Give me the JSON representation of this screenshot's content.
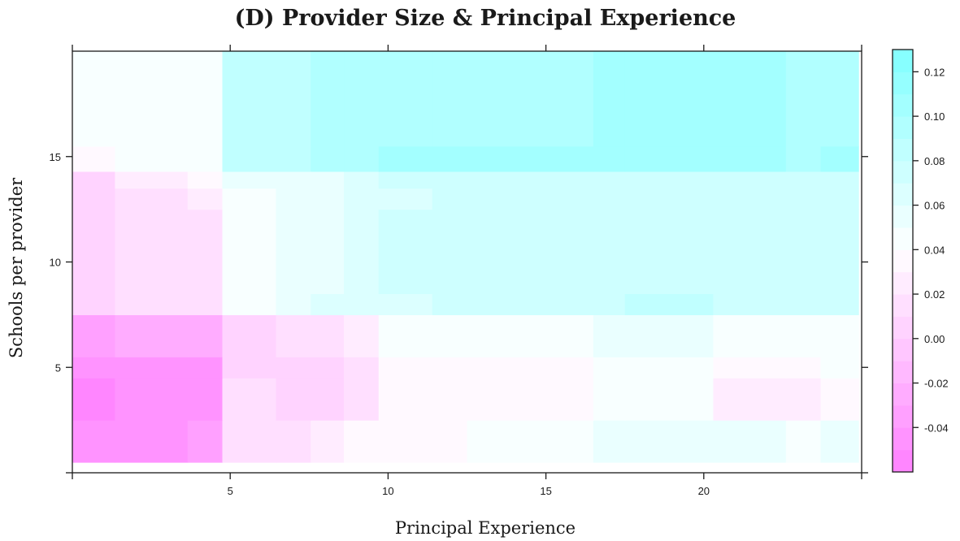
{
  "chart_data": {
    "type": "heatmap",
    "title": "(D) Provider Size & Principal Experience",
    "xlabel": "Principal Experience",
    "ylabel": "Schools per provider",
    "xlim": [
      0,
      25
    ],
    "ylim": [
      0,
      20
    ],
    "x_ticks": [
      {
        "value": 5,
        "label": "5"
      },
      {
        "value": 10,
        "label": "10"
      },
      {
        "value": 15,
        "label": "15"
      },
      {
        "value": 20,
        "label": "20"
      }
    ],
    "y_ticks": [
      {
        "value": 5,
        "label": "5"
      },
      {
        "value": 10,
        "label": "10"
      },
      {
        "value": 15,
        "label": "15"
      }
    ],
    "x_bins": [
      0,
      1.35,
      3.65,
      4.75,
      6.45,
      7.55,
      8.6,
      9.7,
      11.4,
      12.5,
      16.5,
      17.5,
      20.3,
      22.6,
      23.7,
      24.9
    ],
    "y_bins": [
      0.5,
      2.5,
      4.5,
      5.5,
      7.5,
      8.5,
      10.5,
      12.5,
      13.5,
      14.3,
      15.5,
      20
    ],
    "z_grid": [
      [
        -0.048,
        -0.04,
        -0.036,
        0.016,
        0.016,
        0.028,
        0.032,
        0.032,
        0.036,
        0.048,
        0.052,
        0.058,
        0.052,
        0.044,
        0.052
      ],
      [
        -0.052,
        -0.046,
        -0.044,
        0.012,
        0.004,
        0.008,
        0.016,
        0.032,
        0.032,
        0.034,
        0.044,
        0.044,
        0.028,
        0.028,
        0.032
      ],
      [
        -0.044,
        -0.042,
        -0.042,
        0.008,
        0.004,
        0.008,
        0.016,
        0.032,
        0.032,
        0.032,
        0.044,
        0.044,
        0.034,
        0.034,
        0.04
      ],
      [
        -0.036,
        -0.03,
        -0.03,
        0.006,
        0.012,
        0.012,
        0.026,
        0.046,
        0.046,
        0.046,
        0.056,
        0.056,
        0.046,
        0.046,
        0.046
      ],
      [
        0.008,
        0.016,
        0.016,
        0.042,
        0.058,
        0.06,
        0.062,
        0.062,
        0.072,
        0.072,
        0.074,
        0.082,
        0.07,
        0.072,
        0.072
      ],
      [
        0.008,
        0.016,
        0.016,
        0.042,
        0.05,
        0.058,
        0.062,
        0.07,
        0.07,
        0.074,
        0.078,
        0.078,
        0.074,
        0.072,
        0.072
      ],
      [
        0.008,
        0.016,
        0.016,
        0.042,
        0.05,
        0.058,
        0.062,
        0.074,
        0.074,
        0.074,
        0.074,
        0.074,
        0.074,
        0.074,
        0.074
      ],
      [
        0.008,
        0.016,
        0.022,
        0.044,
        0.05,
        0.058,
        0.062,
        0.066,
        0.072,
        0.072,
        0.078,
        0.078,
        0.072,
        0.072,
        0.072
      ],
      [
        0.008,
        0.022,
        0.03,
        0.054,
        0.054,
        0.056,
        0.066,
        0.072,
        0.072,
        0.072,
        0.078,
        0.078,
        0.072,
        0.072,
        0.072
      ],
      [
        0.03,
        0.048,
        0.048,
        0.08,
        0.08,
        0.09,
        0.096,
        0.1,
        0.1,
        0.1,
        0.11,
        0.11,
        0.104,
        0.094,
        0.106
      ],
      [
        0.04,
        0.048,
        0.048,
        0.08,
        0.08,
        0.09,
        0.09,
        0.098,
        0.098,
        0.098,
        0.11,
        0.106,
        0.106,
        0.094,
        0.094
      ]
    ],
    "colorbar": {
      "min": -0.06,
      "max": 0.13,
      "low_color": "#ff80ff",
      "mid_color": "#ffffff",
      "high_color": "#80ffff",
      "mid_value": 0.04,
      "levels": 19,
      "ticks": [
        {
          "value": 0.12,
          "label": "0.12"
        },
        {
          "value": 0.1,
          "label": "0.10"
        },
        {
          "value": 0.08,
          "label": "0.08"
        },
        {
          "value": 0.06,
          "label": "0.06"
        },
        {
          "value": 0.04,
          "label": "0.04"
        },
        {
          "value": 0.02,
          "label": "0.02"
        },
        {
          "value": 0.0,
          "label": "0.00"
        },
        {
          "value": -0.02,
          "label": "-0.02"
        },
        {
          "value": -0.04,
          "label": "-0.04"
        }
      ]
    },
    "grid": false,
    "legend": "right"
  }
}
